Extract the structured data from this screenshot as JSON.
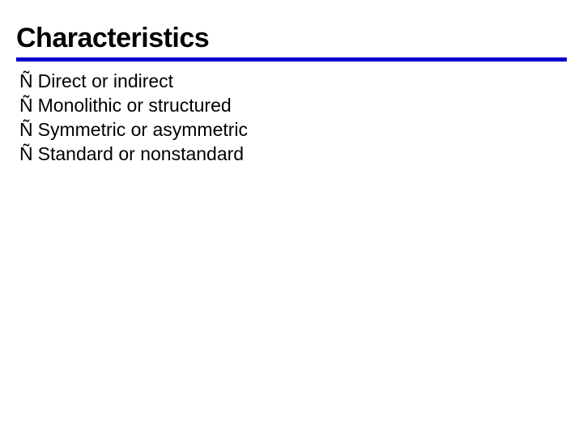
{
  "slide": {
    "title": "Characteristics",
    "title_fontsize": 34,
    "title_color": "#000000",
    "divider_color": "#0000cc",
    "divider_thickness": 5,
    "background_color": "#ffffff",
    "bullet_glyph": "Ñ",
    "bullet_fontsize": 23,
    "bullet_color": "#000000",
    "bullets": [
      "Direct or indirect",
      "Monolithic or structured",
      "Symmetric or asymmetric",
      "Standard or nonstandard"
    ]
  }
}
